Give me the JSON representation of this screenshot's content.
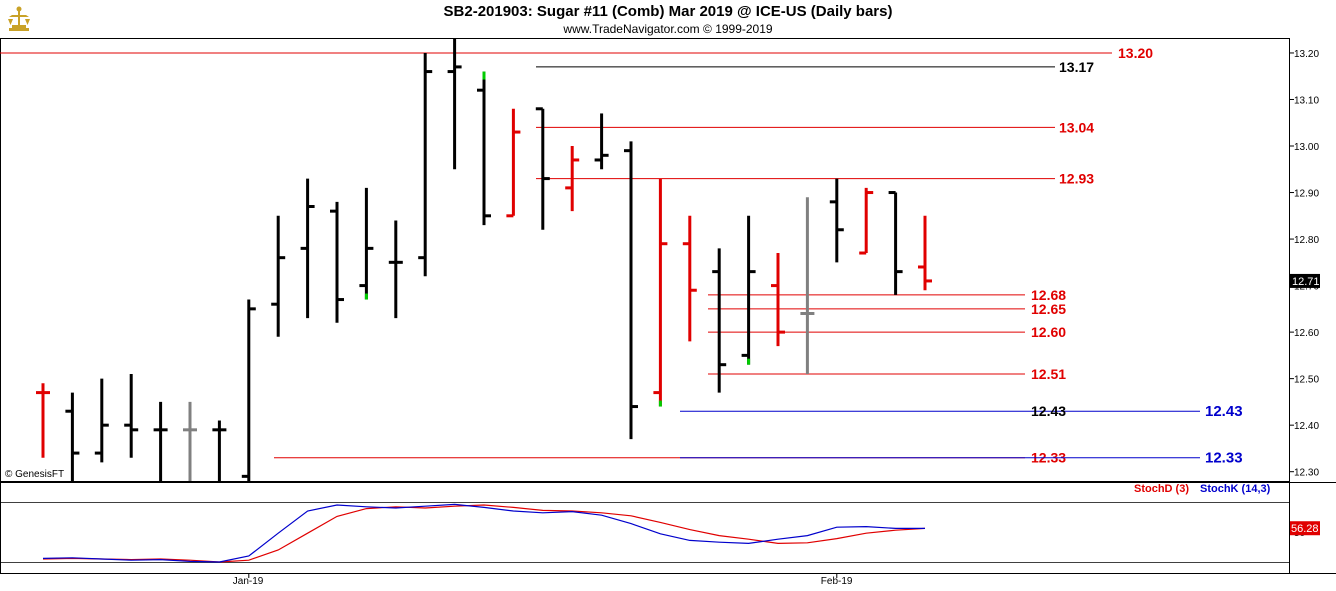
{
  "header": {
    "title": "SB2-201903:  Sugar #11 (Comb) Mar 2019 @ ICE-US  (Daily bars)",
    "subtitle": "www.TradeNavigator.com © 1999-2019",
    "copyright": "© GenesisFT"
  },
  "colors": {
    "up_bar": "#000000",
    "down_bar": "#e00000",
    "neutral_bar": "#808080",
    "highlight_tick": "#00cc00",
    "level_red": "#e00000",
    "level_black": "#000000",
    "level_blue": "#0000cc",
    "stoch_d": "#e00000",
    "stoch_k": "#0000cc"
  },
  "chart_data": [
    {
      "type": "ohlc",
      "name": "price",
      "ylim": [
        12.28,
        13.23
      ],
      "y_ticks": [
        "13.20",
        "13.10",
        "13.00",
        "12.90",
        "12.80",
        "12.70",
        "12.60",
        "12.50",
        "12.40",
        "12.30"
      ],
      "last_price": "12.71",
      "bars": [
        {
          "o": 12.47,
          "h": 12.49,
          "l": 12.33,
          "c": 12.47,
          "color": "red"
        },
        {
          "o": 12.43,
          "h": 12.47,
          "l": 12.28,
          "c": 12.34,
          "color": "black"
        },
        {
          "o": 12.34,
          "h": 12.5,
          "l": 12.32,
          "c": 12.4,
          "color": "black"
        },
        {
          "o": 12.4,
          "h": 12.51,
          "l": 12.33,
          "c": 12.39,
          "color": "black"
        },
        {
          "o": 12.39,
          "h": 12.45,
          "l": 12.28,
          "c": 12.39,
          "color": "black"
        },
        {
          "o": 12.39,
          "h": 12.45,
          "l": 12.28,
          "c": 12.39,
          "color": "gray"
        },
        {
          "o": 12.39,
          "h": 12.41,
          "l": 12.28,
          "c": 12.39,
          "color": "black"
        },
        {
          "o": 12.29,
          "h": 12.67,
          "l": 12.28,
          "c": 12.65,
          "color": "black"
        },
        {
          "o": 12.66,
          "h": 12.85,
          "l": 12.59,
          "c": 12.76,
          "color": "black"
        },
        {
          "o": 12.78,
          "h": 12.93,
          "l": 12.63,
          "c": 12.87,
          "color": "black"
        },
        {
          "o": 12.86,
          "h": 12.88,
          "l": 12.62,
          "c": 12.67,
          "color": "black"
        },
        {
          "o": 12.7,
          "h": 12.91,
          "l": 12.67,
          "c": 12.78,
          "color": "black",
          "hl": "low"
        },
        {
          "o": 12.75,
          "h": 12.84,
          "l": 12.63,
          "c": 12.75,
          "color": "black"
        },
        {
          "o": 12.76,
          "h": 13.2,
          "l": 12.72,
          "c": 13.16,
          "color": "black"
        },
        {
          "o": 13.16,
          "h": 13.23,
          "l": 12.95,
          "c": 13.17,
          "color": "black"
        },
        {
          "o": 13.12,
          "h": 13.16,
          "l": 12.83,
          "c": 12.85,
          "color": "black",
          "hl": "high"
        },
        {
          "o": 12.85,
          "h": 13.08,
          "l": 12.85,
          "c": 13.03,
          "color": "red"
        },
        {
          "o": 13.08,
          "h": 13.08,
          "l": 12.82,
          "c": 12.93,
          "color": "black"
        },
        {
          "o": 12.91,
          "h": 13.0,
          "l": 12.86,
          "c": 12.97,
          "color": "red"
        },
        {
          "o": 12.97,
          "h": 13.07,
          "l": 12.95,
          "c": 12.98,
          "color": "black"
        },
        {
          "o": 12.99,
          "h": 13.01,
          "l": 12.37,
          "c": 12.44,
          "color": "black"
        },
        {
          "o": 12.47,
          "h": 12.93,
          "l": 12.44,
          "c": 12.79,
          "color": "red",
          "hl": "low"
        },
        {
          "o": 12.79,
          "h": 12.85,
          "l": 12.58,
          "c": 12.69,
          "color": "red"
        },
        {
          "o": 12.73,
          "h": 12.78,
          "l": 12.47,
          "c": 12.53,
          "color": "black"
        },
        {
          "o": 12.55,
          "h": 12.85,
          "l": 12.53,
          "c": 12.73,
          "color": "black",
          "hl": "low"
        },
        {
          "o": 12.7,
          "h": 12.77,
          "l": 12.57,
          "c": 12.6,
          "color": "red"
        },
        {
          "o": 12.64,
          "h": 12.89,
          "l": 12.51,
          "c": 12.64,
          "color": "gray"
        },
        {
          "o": 12.88,
          "h": 12.93,
          "l": 12.75,
          "c": 12.82,
          "color": "black"
        },
        {
          "o": 12.77,
          "h": 12.91,
          "l": 12.77,
          "c": 12.9,
          "color": "red"
        },
        {
          "o": 12.9,
          "h": 12.9,
          "l": 12.68,
          "c": 12.73,
          "color": "black"
        },
        {
          "o": 12.74,
          "h": 12.85,
          "l": 12.69,
          "c": 12.71,
          "color": "red"
        }
      ],
      "levels": [
        {
          "value": 13.2,
          "label": "13.20",
          "color": "red",
          "label_pos": "far"
        },
        {
          "value": 13.17,
          "label": "13.17",
          "color": "black",
          "label_pos": "near"
        },
        {
          "value": 13.04,
          "label": "13.04",
          "color": "red",
          "label_pos": "near"
        },
        {
          "value": 12.93,
          "label": "12.93",
          "color": "red",
          "label_pos": "near"
        },
        {
          "value": 12.68,
          "label": "12.68",
          "color": "red",
          "label_pos": "near"
        },
        {
          "value": 12.65,
          "label": "12.65",
          "color": "red",
          "label_pos": "near"
        },
        {
          "value": 12.6,
          "label": "12.60",
          "color": "red",
          "label_pos": "near"
        },
        {
          "value": 12.51,
          "label": "12.51",
          "color": "red",
          "label_pos": "near"
        },
        {
          "value": 12.43,
          "label": "12.43",
          "color": "blue",
          "label_pos": "far"
        },
        {
          "value": 12.43,
          "label": "12.43",
          "color": "black",
          "label_pos": "near"
        },
        {
          "value": 12.33,
          "label": "12.33",
          "color": "red",
          "label_pos": "near"
        },
        {
          "value": 12.33,
          "label": "12.33",
          "color": "blue",
          "label_pos": "far"
        }
      ],
      "x_tick_labels": [
        {
          "label": "Jan-19",
          "bar": 7
        },
        {
          "label": "Feb-19",
          "bar": 27
        }
      ]
    },
    {
      "type": "line",
      "name": "stochastic",
      "ylim": [
        0,
        100
      ],
      "last_value": "56.28",
      "series": [
        {
          "name": "StochD (3)",
          "color": "red",
          "values": [
            5,
            6,
            5,
            4,
            5,
            3,
            0,
            3,
            20,
            48,
            76,
            89,
            92,
            90,
            93,
            95,
            91,
            86,
            85,
            82,
            77,
            66,
            54,
            44,
            38,
            31,
            32,
            39,
            48,
            53,
            56
          ]
        },
        {
          "name": "StochK (14,3)",
          "color": "blue",
          "values": [
            6,
            7,
            5,
            3,
            4,
            1,
            0,
            10,
            48,
            85,
            95,
            92,
            90,
            93,
            96,
            91,
            85,
            82,
            84,
            78,
            64,
            47,
            36,
            33,
            31,
            38,
            44,
            58,
            59,
            56,
            56
          ]
        }
      ]
    }
  ]
}
